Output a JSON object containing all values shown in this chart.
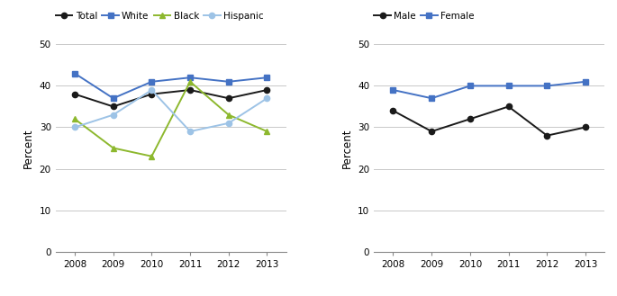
{
  "years": [
    2008,
    2009,
    2010,
    2011,
    2012,
    2013
  ],
  "left_chart": {
    "Total": [
      38,
      35,
      38,
      39,
      37,
      39
    ],
    "White": [
      43,
      37,
      41,
      42,
      41,
      42
    ],
    "Black": [
      32,
      25,
      23,
      41,
      33,
      29
    ],
    "Hispanic": [
      30,
      33,
      39,
      29,
      31,
      37
    ]
  },
  "right_chart": {
    "Male": [
      34,
      29,
      32,
      35,
      28,
      30
    ],
    "Female": [
      39,
      37,
      40,
      40,
      40,
      41
    ]
  },
  "left_series_styles": {
    "Total": {
      "color": "#1a1a1a",
      "marker": "o",
      "linestyle": "-"
    },
    "White": {
      "color": "#4472c4",
      "marker": "s",
      "linestyle": "-"
    },
    "Black": {
      "color": "#8db82e",
      "marker": "^",
      "linestyle": "-"
    },
    "Hispanic": {
      "color": "#9dc3e6",
      "marker": "o",
      "linestyle": "-"
    }
  },
  "right_series_styles": {
    "Male": {
      "color": "#1a1a1a",
      "marker": "o",
      "linestyle": "-"
    },
    "Female": {
      "color": "#4472c4",
      "marker": "s",
      "linestyle": "-"
    }
  },
  "ylabel": "Percent",
  "ylim": [
    0,
    50
  ],
  "yticks": [
    0,
    10,
    20,
    30,
    40,
    50
  ],
  "background_color": "#ffffff"
}
